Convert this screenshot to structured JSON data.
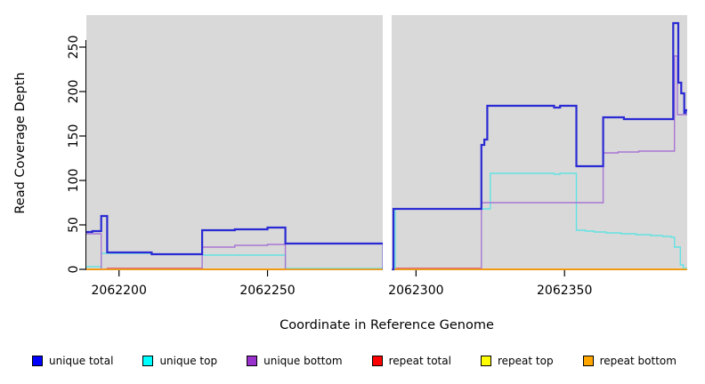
{
  "chart_data": {
    "type": "line",
    "subtype": "step-coverage",
    "title": "",
    "xlabel": "Coordinate in Reference Genome",
    "ylabel": "Read Coverage Depth",
    "x_domain": [
      2062189,
      2062391.3
    ],
    "y_domain": [
      0,
      286
    ],
    "x_ticks": [
      2062200,
      2062250,
      2062300,
      2062350
    ],
    "y_ticks": [
      0,
      50,
      100,
      150,
      200,
      250
    ],
    "grid": "off",
    "plot_background": "#d9d9d9",
    "gap_region": {
      "x1": 2062288.8,
      "x2": 2062291.8,
      "color": "#ffffff"
    },
    "legend_position": "bottom",
    "draw_order": [
      4,
      3,
      1,
      2,
      5,
      0
    ],
    "series": [
      {
        "name": "unique total",
        "line_color": "#2a2ad4",
        "legend_color": "#0000ff",
        "line_width": 2.2,
        "segments": [
          [
            [
              2062189,
              42
            ],
            [
              2062191,
              43
            ],
            [
              2062194,
              60
            ],
            [
              2062196,
              19
            ],
            [
              2062211,
              17
            ],
            [
              2062228,
              44
            ],
            [
              2062239,
              45
            ],
            [
              2062250,
              47
            ],
            [
              2062256,
              29
            ],
            [
              2062289,
              0
            ]
          ],
          [
            [
              2062292,
              0
            ],
            [
              2062292.4,
              68
            ],
            [
              2062322,
              140
            ],
            [
              2062323,
              146
            ],
            [
              2062324,
              184
            ],
            [
              2062346.5,
              182
            ],
            [
              2062348.5,
              184
            ],
            [
              2062354,
              116
            ],
            [
              2062363,
              171
            ],
            [
              2062370,
              169
            ],
            [
              2062386.6,
              277
            ],
            [
              2062388.3,
              210
            ],
            [
              2062389.3,
              198
            ],
            [
              2062390.3,
              176
            ],
            [
              2062390.8,
              179
            ],
            [
              2062391.3,
              179
            ]
          ]
        ]
      },
      {
        "name": "unique top",
        "line_color": "#63e3e3",
        "legend_color": "#00ffff",
        "line_width": 1.4,
        "segments": [
          [
            [
              2062189,
              3
            ],
            [
              2062194,
              18
            ],
            [
              2062211,
              17
            ],
            [
              2062228,
              16
            ],
            [
              2062256,
              1
            ],
            [
              2062289,
              1
            ]
          ],
          [
            [
              2062292,
              1
            ],
            [
              2062293,
              68
            ],
            [
              2062325,
              108
            ],
            [
              2062346.5,
              107
            ],
            [
              2062348.5,
              108
            ],
            [
              2062354,
              44
            ],
            [
              2062357,
              43
            ],
            [
              2062360,
              42
            ],
            [
              2062364,
              41
            ],
            [
              2062369,
              40
            ],
            [
              2062374,
              39
            ],
            [
              2062379,
              38
            ],
            [
              2062383,
              37
            ],
            [
              2062386,
              36
            ],
            [
              2062387,
              25
            ],
            [
              2062389,
              5
            ],
            [
              2062390,
              1
            ],
            [
              2062391.3,
              1
            ]
          ]
        ]
      },
      {
        "name": "unique bottom",
        "line_color": "#a775d4",
        "legend_color": "#9932cc",
        "line_width": 1.4,
        "segments": [
          [
            [
              2062189,
              40
            ],
            [
              2062194,
              0
            ],
            [
              2062228,
              25
            ],
            [
              2062239,
              27
            ],
            [
              2062250,
              28
            ],
            [
              2062256,
              0
            ],
            [
              2062289,
              0
            ]
          ],
          [
            [
              2062292,
              0
            ],
            [
              2062322,
              75
            ],
            [
              2062363,
              131
            ],
            [
              2062368,
              132
            ],
            [
              2062375,
              133
            ],
            [
              2062387,
              240
            ],
            [
              2062388,
              174
            ],
            [
              2062391.3,
              174
            ]
          ]
        ]
      },
      {
        "name": "repeat total",
        "line_color": "#e04565",
        "legend_color": "#ff0000",
        "line_width": 1.4,
        "segments": [
          [
            [
              2062189,
              0
            ],
            [
              2062196,
              1
            ],
            [
              2062228,
              0
            ],
            [
              2062289,
              0
            ]
          ],
          [
            [
              2062292,
              1
            ],
            [
              2062322,
              0
            ],
            [
              2062391.3,
              0
            ]
          ]
        ]
      },
      {
        "name": "repeat top",
        "line_color": "#f0f000",
        "legend_color": "#ffff00",
        "line_width": 1.4,
        "segments": [
          [
            [
              2062189,
              0
            ],
            [
              2062289,
              0
            ]
          ],
          [
            [
              2062292,
              0
            ],
            [
              2062391.3,
              0
            ]
          ]
        ]
      },
      {
        "name": "repeat bottom",
        "line_color": "#ffa500",
        "legend_color": "#ffa500",
        "line_width": 1.6,
        "segments": [
          [
            [
              2062189,
              0
            ],
            [
              2062289,
              0
            ]
          ],
          [
            [
              2062292,
              0
            ],
            [
              2062391.3,
              0
            ]
          ]
        ]
      }
    ]
  }
}
